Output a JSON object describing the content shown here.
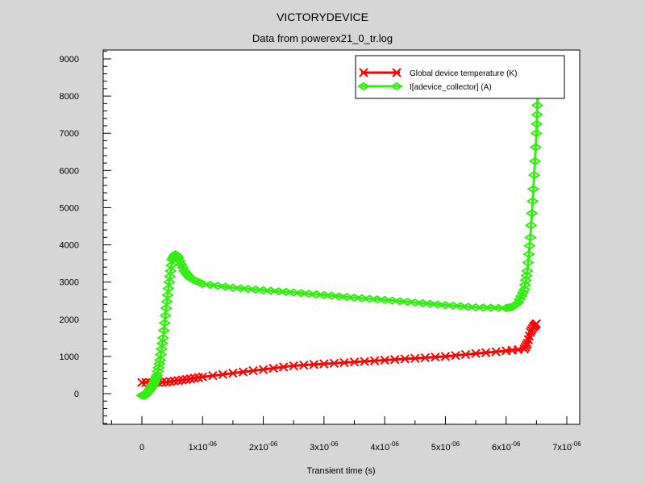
{
  "chart_data": {
    "type": "line",
    "title": "VICTORYDEVICE",
    "subtitle": "Data from powerex21_0_tr.log",
    "xlabel": "Transient time (s)",
    "ylabel": "",
    "xlim": [
      -5e-07,
      7e-06
    ],
    "ylim": [
      -800,
      9300
    ],
    "x_ticks": [
      {
        "value": 0,
        "label": "0",
        "exp": ""
      },
      {
        "value": 1e-06,
        "label": "1x10",
        "exp": "-06"
      },
      {
        "value": 2e-06,
        "label": "2x10",
        "exp": "-06"
      },
      {
        "value": 3e-06,
        "label": "3x10",
        "exp": "-06"
      },
      {
        "value": 4e-06,
        "label": "4x10",
        "exp": "-06"
      },
      {
        "value": 5e-06,
        "label": "5x10",
        "exp": "-06"
      },
      {
        "value": 6e-06,
        "label": "6x10",
        "exp": "-06"
      },
      {
        "value": 7e-06,
        "label": "7x10",
        "exp": "-06"
      }
    ],
    "y_ticks": [
      0,
      1000,
      2000,
      3000,
      4000,
      5000,
      6000,
      7000,
      8000,
      9000
    ],
    "y_tick_labels": [
      "0",
      "1000",
      "2000",
      "3000",
      "4000",
      "5000",
      "6000",
      "7000",
      "8000",
      "9000"
    ],
    "legend_position": "top-right",
    "grid": false,
    "series": [
      {
        "name": "Global device temperature (K)",
        "color": "#ff0000",
        "marker": "x",
        "x": [
          0,
          2e-07,
          4e-07,
          6e-07,
          8e-07,
          1e-06,
          1.5e-06,
          2e-06,
          2.5e-06,
          3e-06,
          3.5e-06,
          4e-06,
          4.5e-06,
          5e-06,
          5.5e-06,
          6e-06,
          6.3e-06,
          6.35e-06,
          6.4e-06,
          6.45e-06,
          6.5e-06
        ],
        "y": [
          300,
          300,
          310,
          350,
          400,
          450,
          550,
          650,
          750,
          800,
          850,
          900,
          950,
          1000,
          1080,
          1150,
          1200,
          1350,
          1650,
          1800,
          1880
        ]
      },
      {
        "name": "I[adevice_collector] (A)",
        "color": "#33ee11",
        "marker": "diamond",
        "x": [
          0,
          5e-08,
          1e-07,
          1.5e-07,
          2e-07,
          2.5e-07,
          3e-07,
          3.5e-07,
          4e-07,
          4.5e-07,
          5e-07,
          5.5e-07,
          6e-07,
          7e-07,
          8e-07,
          1e-06,
          1.5e-06,
          2e-06,
          2.5e-06,
          3e-06,
          3.5e-06,
          4e-06,
          4.5e-06,
          5e-06,
          5.5e-06,
          6e-06,
          6.1e-06,
          6.2e-06,
          6.3e-06,
          6.35e-06,
          6.4e-06,
          6.45e-06,
          6.5e-06,
          6.52e-06
        ],
        "y": [
          -50,
          -50,
          50,
          150,
          300,
          500,
          900,
          1500,
          2300,
          3000,
          3600,
          3750,
          3650,
          3300,
          3100,
          2950,
          2850,
          2780,
          2720,
          2650,
          2580,
          2520,
          2450,
          2380,
          2320,
          2300,
          2330,
          2450,
          2800,
          3300,
          4200,
          5500,
          7000,
          8000
        ]
      }
    ]
  }
}
